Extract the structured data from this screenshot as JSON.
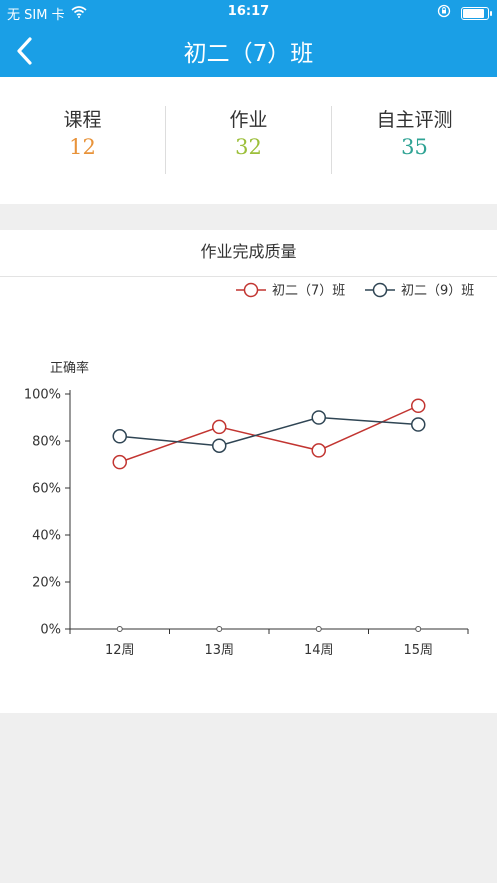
{
  "status_bar": {
    "carrier": "无 SIM 卡",
    "time": "16:17"
  },
  "nav": {
    "title": "初二（7）班"
  },
  "stats": [
    {
      "label": "课程",
      "value": "12",
      "color": "#e8933a"
    },
    {
      "label": "作业",
      "value": "32",
      "color": "#9cbf3a"
    },
    {
      "label": "自主评测",
      "value": "35",
      "color": "#2fa394"
    }
  ],
  "chart_section": {
    "title": "作业完成质量"
  },
  "chart_data": {
    "type": "line",
    "ylabel": "正确率",
    "xlabel": "",
    "categories": [
      "12周",
      "13周",
      "14周",
      "15周"
    ],
    "y_ticks": [
      "0%",
      "20%",
      "40%",
      "60%",
      "80%",
      "100%"
    ],
    "ylim": [
      0,
      100
    ],
    "grid": false,
    "legend_position": "top-right",
    "series": [
      {
        "name": "初二（7）班",
        "color": "#c23531",
        "values": [
          71,
          86,
          76,
          95
        ]
      },
      {
        "name": "初二（9）班",
        "color": "#2f4554",
        "values": [
          82,
          78,
          90,
          87
        ]
      }
    ]
  }
}
